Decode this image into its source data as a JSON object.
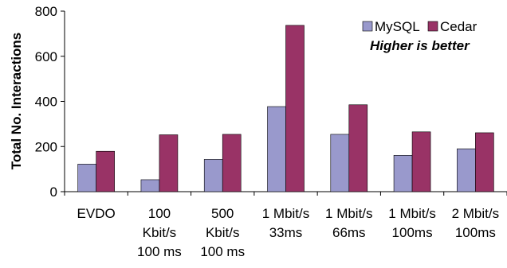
{
  "chart_data": {
    "type": "bar",
    "title": "",
    "xlabel": "",
    "ylabel": "Total No. Interactions",
    "ylim": [
      0,
      800
    ],
    "yticks": [
      0,
      200,
      400,
      600,
      800
    ],
    "grid": false,
    "legend_position": "top-right",
    "annotation": "Higher is better",
    "categories": [
      [
        "EVDO"
      ],
      [
        "100",
        "Kbit/s",
        "100 ms"
      ],
      [
        "500",
        "Kbit/s",
        "100 ms"
      ],
      [
        "1 Mbit/s",
        "33ms"
      ],
      [
        "1 Mbit/s",
        "66ms"
      ],
      [
        "1 Mbit/s",
        "100ms"
      ],
      [
        "2 Mbit/s",
        "100ms"
      ]
    ],
    "series": [
      {
        "name": "MySQL",
        "color": "#9999cc",
        "values": [
          122,
          53,
          143,
          377,
          254,
          161,
          190
        ]
      },
      {
        "name": "Cedar",
        "color": "#993366",
        "values": [
          179,
          252,
          254,
          737,
          385,
          265,
          261
        ]
      }
    ]
  }
}
